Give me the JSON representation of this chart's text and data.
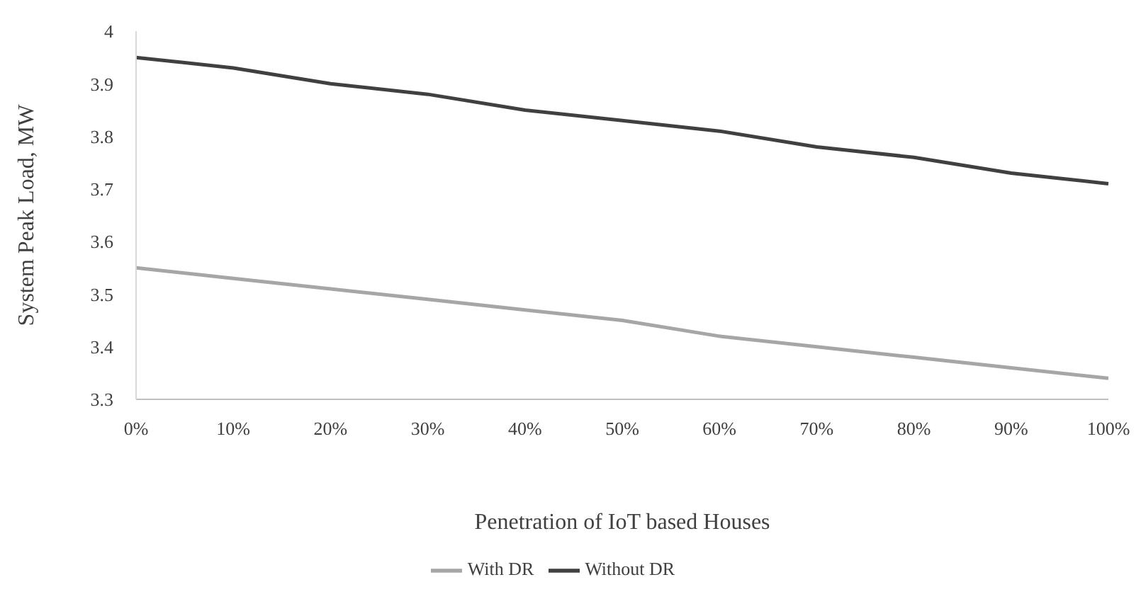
{
  "chart_data": {
    "type": "line",
    "xlabel": "Penetration of IoT based Houses",
    "ylabel": "System Peak Load, MW",
    "categories": [
      "0%",
      "10%",
      "20%",
      "30%",
      "40%",
      "50%",
      "60%",
      "70%",
      "80%",
      "90%",
      "100%"
    ],
    "series": [
      {
        "name": "Without DR",
        "color": "#404040",
        "values": [
          3.95,
          3.93,
          3.9,
          3.88,
          3.85,
          3.83,
          3.81,
          3.78,
          3.76,
          3.73,
          3.71
        ]
      },
      {
        "name": "With DR",
        "color": "#a6a6a6",
        "values": [
          3.55,
          3.53,
          3.51,
          3.49,
          3.47,
          3.45,
          3.42,
          3.4,
          3.38,
          3.36,
          3.34
        ]
      }
    ],
    "ylim": [
      3.3,
      4
    ],
    "yticks": [
      3.3,
      3.4,
      3.5,
      3.6,
      3.7,
      3.8,
      3.9,
      4
    ],
    "legend": "bottom",
    "marker": "none",
    "line_style": "solid"
  }
}
